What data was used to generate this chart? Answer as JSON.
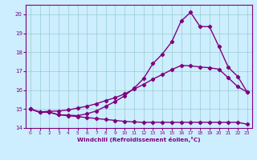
{
  "xlabel": "Windchill (Refroidissement éolien,°C)",
  "background_color": "#cceeff",
  "line_color": "#800080",
  "grid_color": "#99cccc",
  "spine_color": "#800080",
  "xlim": [
    -0.5,
    23.5
  ],
  "ylim": [
    14.0,
    20.5
  ],
  "xticks": [
    0,
    1,
    2,
    3,
    4,
    5,
    6,
    7,
    8,
    9,
    10,
    11,
    12,
    13,
    14,
    15,
    16,
    17,
    18,
    19,
    20,
    21,
    22,
    23
  ],
  "yticks": [
    14,
    15,
    16,
    17,
    18,
    19,
    20
  ],
  "s1_x": [
    0,
    1,
    2,
    3,
    4,
    5,
    6,
    7,
    8,
    9,
    10,
    11,
    12,
    13,
    14,
    15,
    16,
    17,
    18,
    19,
    20,
    21,
    22,
    23
  ],
  "s1_y": [
    15.0,
    14.83,
    14.83,
    14.7,
    14.65,
    14.6,
    14.55,
    14.5,
    14.45,
    14.4,
    14.35,
    14.32,
    14.3,
    14.3,
    14.3,
    14.3,
    14.3,
    14.3,
    14.3,
    14.3,
    14.3,
    14.3,
    14.3,
    14.2
  ],
  "s2_x": [
    0,
    1,
    2,
    3,
    4,
    5,
    6,
    7,
    8,
    9,
    10,
    11,
    12,
    13,
    14,
    15,
    16,
    17,
    18,
    19,
    20,
    21,
    22,
    23
  ],
  "s2_y": [
    15.0,
    14.85,
    14.88,
    14.9,
    14.95,
    15.05,
    15.15,
    15.28,
    15.45,
    15.6,
    15.8,
    16.05,
    16.3,
    16.58,
    16.82,
    17.08,
    17.3,
    17.28,
    17.22,
    17.18,
    17.1,
    16.65,
    16.18,
    15.9
  ],
  "s3_x": [
    0,
    1,
    2,
    3,
    4,
    5,
    6,
    7,
    8,
    9,
    10,
    11,
    12,
    13,
    14,
    15,
    16,
    17,
    18,
    19,
    20,
    21,
    22,
    23
  ],
  "s3_y": [
    15.0,
    14.83,
    14.83,
    14.7,
    14.68,
    14.65,
    14.75,
    14.9,
    15.15,
    15.4,
    15.7,
    16.1,
    16.6,
    17.4,
    17.9,
    18.55,
    19.65,
    20.1,
    19.35,
    19.35,
    18.3,
    17.2,
    16.72,
    15.9
  ],
  "marker": "D",
  "markersize": 2.2,
  "linewidth": 1.0
}
